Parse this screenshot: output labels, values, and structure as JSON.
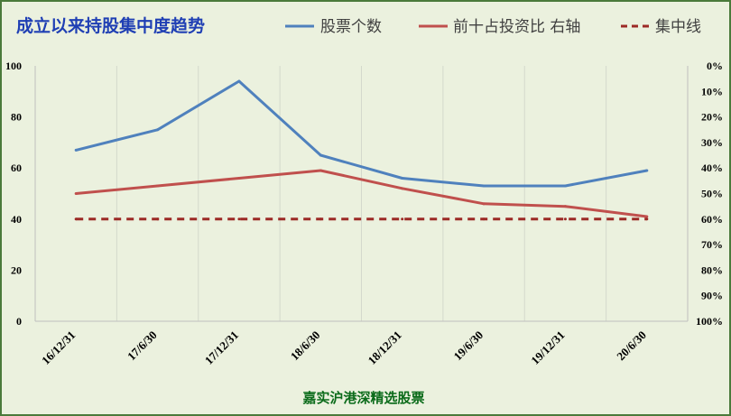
{
  "chart_data": {
    "type": "line",
    "title": "成立以来持股集中度趋势",
    "caption": "嘉实沪港深精选股票",
    "categories": [
      "16/12/31",
      "17/6/30",
      "17/12/31",
      "18/6/30",
      "18/12/31",
      "19/6/30",
      "19/12/31",
      "20/6/30"
    ],
    "left_axis": {
      "range": [
        0,
        100
      ],
      "ticks": [
        "0",
        "20",
        "40",
        "60",
        "80",
        "100"
      ]
    },
    "right_axis": {
      "range": [
        0,
        100
      ],
      "inverted": true,
      "ticks": [
        "0%",
        "10%",
        "20%",
        "30%",
        "40%",
        "50%",
        "60%",
        "70%",
        "80%",
        "90%",
        "100%"
      ]
    },
    "series": [
      {
        "name": "股票个数",
        "axis": "left",
        "color": "#4f81bd",
        "style": "solid",
        "values": [
          67,
          75,
          94,
          65,
          56,
          53,
          53,
          59
        ]
      },
      {
        "name": "前十占投资比 右轴",
        "axis": "right",
        "color": "#c0504d",
        "style": "solid",
        "values": [
          50,
          47,
          44,
          41,
          48,
          54,
          55,
          59
        ]
      },
      {
        "name": "集中线",
        "axis": "right",
        "color": "#9c2a26",
        "style": "dashed",
        "values": [
          60,
          60,
          60,
          60,
          60,
          60,
          60,
          60
        ]
      }
    ],
    "grid": "vertical",
    "legend_position": "top-right"
  }
}
